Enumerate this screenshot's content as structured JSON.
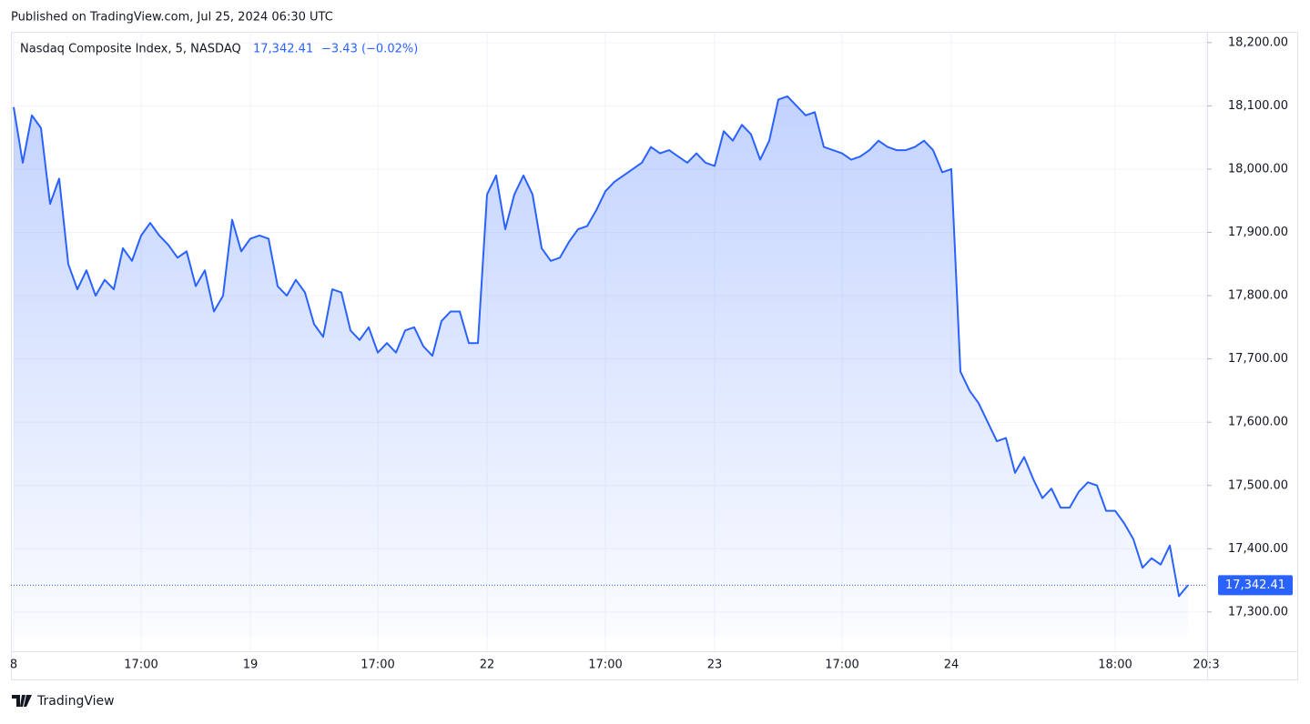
{
  "header": {
    "published": "Published on TradingView.com, Jul 25, 2024 06:30 UTC"
  },
  "footer": {
    "brand": "TradingView"
  },
  "chart_data": {
    "type": "line",
    "legend": {
      "name": "Nasdaq Composite Index, 5, NASDAQ",
      "price": "17,342.41",
      "change": "−3.43 (−0.02%)"
    },
    "last_label": "17,342.41",
    "categories": [
      "8",
      null,
      null,
      null,
      null,
      null,
      null,
      null,
      null,
      null,
      null,
      null,
      null,
      null,
      "17:00",
      null,
      null,
      null,
      null,
      null,
      null,
      null,
      null,
      null,
      null,
      null,
      "19",
      null,
      null,
      null,
      null,
      null,
      null,
      null,
      null,
      null,
      null,
      null,
      null,
      null,
      "17:00",
      null,
      null,
      null,
      null,
      null,
      null,
      null,
      null,
      null,
      null,
      null,
      "22",
      null,
      null,
      null,
      null,
      null,
      null,
      null,
      null,
      null,
      null,
      null,
      null,
      "17:00",
      null,
      null,
      null,
      null,
      null,
      null,
      null,
      null,
      null,
      null,
      null,
      "23",
      null,
      null,
      null,
      null,
      null,
      null,
      null,
      null,
      null,
      null,
      null,
      null,
      null,
      "17:00",
      null,
      null,
      null,
      null,
      null,
      null,
      null,
      null,
      null,
      null,
      null,
      "24",
      null,
      null,
      null,
      null,
      null,
      null,
      null,
      null,
      null,
      null,
      null,
      null,
      null,
      null,
      null,
      null,
      null,
      "18:00",
      null,
      null,
      null,
      null,
      null,
      null,
      null,
      null,
      null,
      "20:3"
    ],
    "series": [
      {
        "name": "Nasdaq Composite Index",
        "color": "#2962ff",
        "values": [
          18098,
          18010,
          18085,
          18065,
          17945,
          17985,
          17850,
          17810,
          17840,
          17800,
          17825,
          17810,
          17875,
          17855,
          17895,
          17915,
          17895,
          17880,
          17860,
          17870,
          17815,
          17840,
          17775,
          17800,
          17920,
          17870,
          17890,
          17895,
          17890,
          17815,
          17800,
          17825,
          17805,
          17755,
          17735,
          17810,
          17805,
          17745,
          17730,
          17750,
          17710,
          17725,
          17710,
          17745,
          17750,
          17720,
          17705,
          17760,
          17775,
          17775,
          17725,
          17725,
          17960,
          17990,
          17905,
          17960,
          17990,
          17960,
          17875,
          17855,
          17860,
          17885,
          17905,
          17910,
          17935,
          17965,
          17980,
          17990,
          18000,
          18010,
          18035,
          18025,
          18030,
          18020,
          18010,
          18025,
          18010,
          18005,
          18060,
          18045,
          18070,
          18055,
          18015,
          18045,
          18110,
          18115,
          18100,
          18085,
          18090,
          18035,
          18030,
          18025,
          18015,
          18020,
          18030,
          18045,
          18035,
          18030,
          18030,
          18035,
          18045,
          18030,
          17995,
          18000,
          17680,
          17650,
          17630,
          17600,
          17570,
          17575,
          17520,
          17545,
          17510,
          17480,
          17495,
          17465,
          17465,
          17490,
          17505,
          17500,
          17460,
          17460,
          17440,
          17415,
          17370,
          17385,
          17375,
          17405,
          17325,
          17342.41,
          null,
          null
        ]
      }
    ],
    "ylim": [
      17261,
      18217
    ],
    "yticks": [
      {
        "value": 17300,
        "label": "17,300.00"
      },
      {
        "value": 17400,
        "label": "17,400.00"
      },
      {
        "value": 17500,
        "label": "17,500.00"
      },
      {
        "value": 17600,
        "label": "17,600.00"
      },
      {
        "value": 17700,
        "label": "17,700.00"
      },
      {
        "value": 17800,
        "label": "17,800.00"
      },
      {
        "value": 17900,
        "label": "17,900.00"
      },
      {
        "value": 18000,
        "label": "18,000.00"
      },
      {
        "value": 18100,
        "label": "18,100.00"
      },
      {
        "value": 18200,
        "label": "18,200.00"
      }
    ],
    "grid": true
  }
}
